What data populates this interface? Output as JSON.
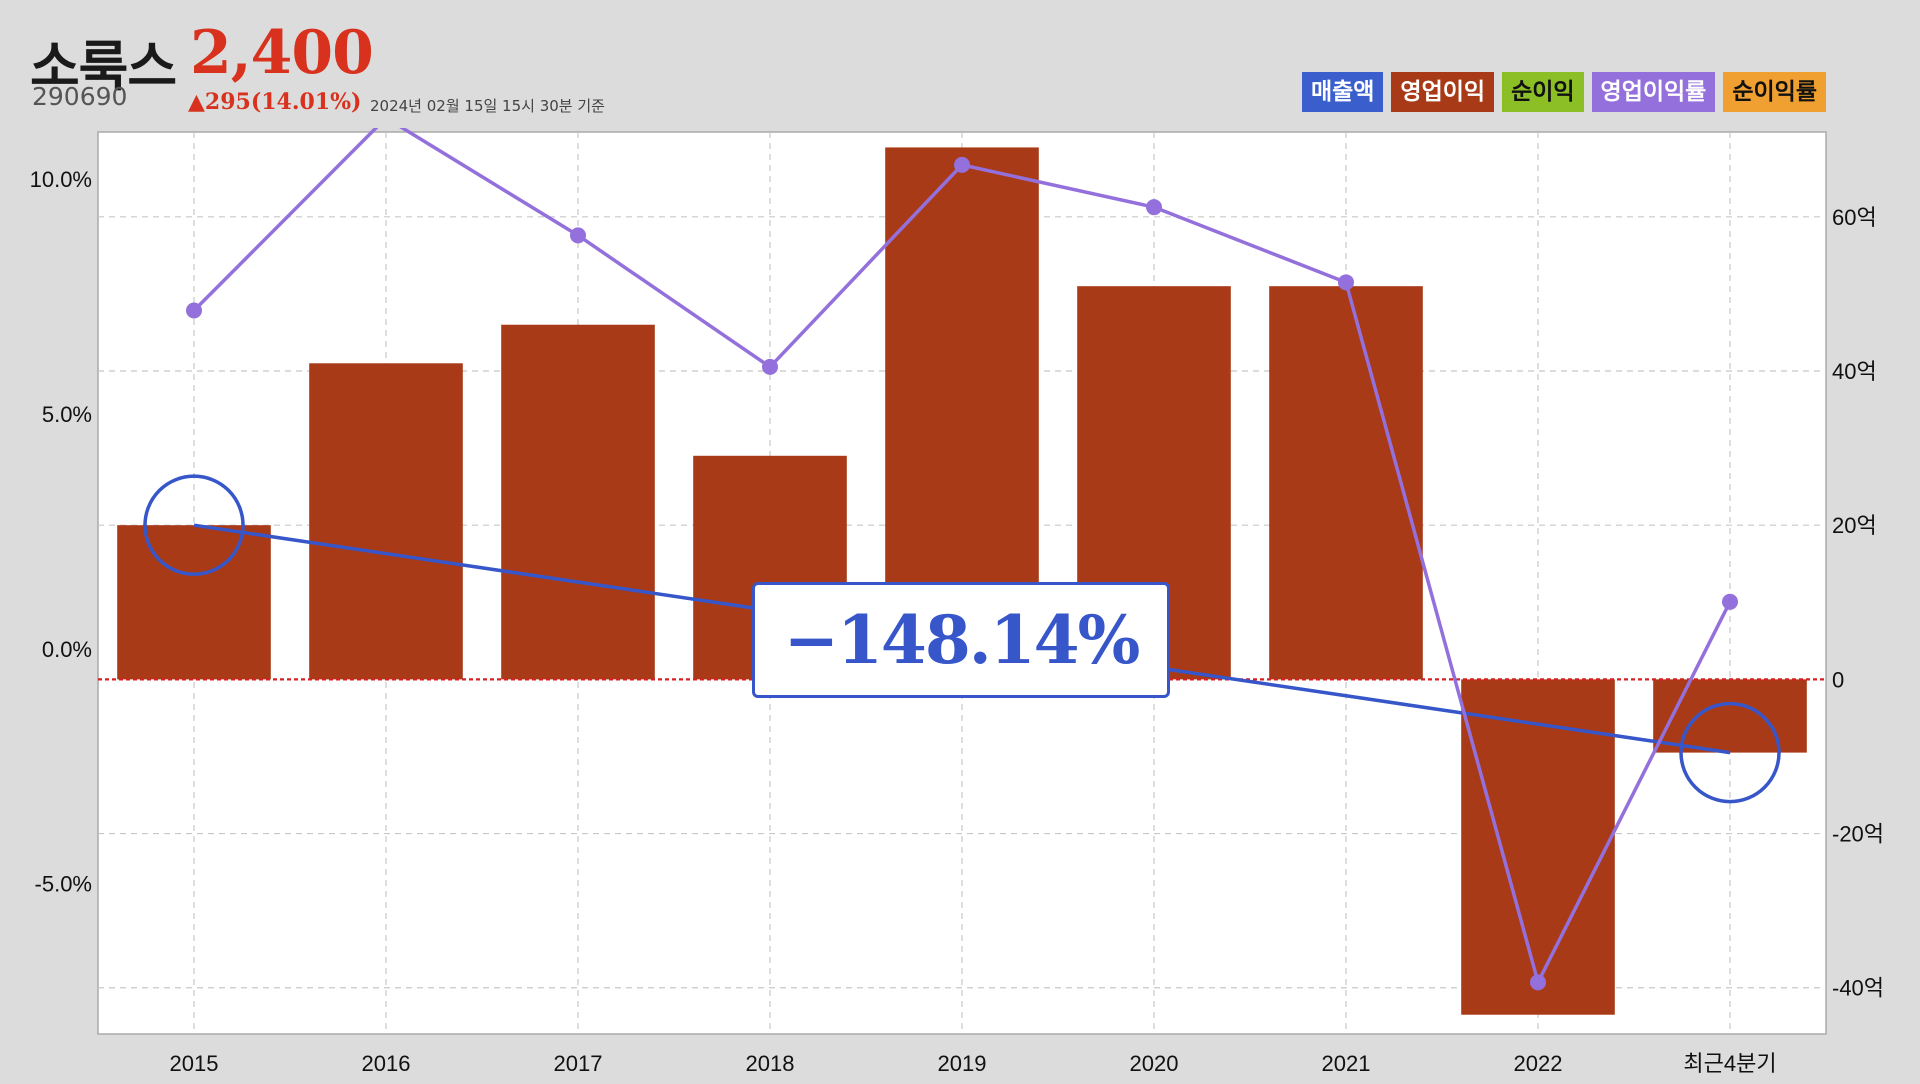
{
  "header": {
    "stock_name": "소룩스",
    "price": "2,400",
    "code": "290690",
    "change": "▲295(14.01%)",
    "timestamp": "2024년 02월 15일 15시 30분 기준"
  },
  "legend": [
    {
      "label": "매출액",
      "color": "#3a5fcd",
      "text_color": "light"
    },
    {
      "label": "영업이익",
      "color": "#a83a18",
      "text_color": "light"
    },
    {
      "label": "순이익",
      "color": "#8cbf26",
      "text_color": "dark"
    },
    {
      "label": "영업이익률",
      "color": "#9370db",
      "text_color": "light"
    },
    {
      "label": "순이익률",
      "color": "#f0a030",
      "text_color": "dark"
    }
  ],
  "callout": {
    "text": "−148.14%"
  },
  "chart_data": {
    "type": "bar",
    "categories": [
      "2015",
      "2016",
      "2017",
      "2018",
      "2019",
      "2020",
      "2021",
      "2022",
      "최근4분기"
    ],
    "series": [
      {
        "name": "영업이익",
        "type": "bar",
        "axis": "right",
        "color": "#a83a18",
        "values": [
          20,
          41,
          46,
          29,
          69,
          51,
          51,
          -43.5,
          -9.5
        ]
      },
      {
        "name": "영업이익률",
        "type": "line",
        "axis": "left",
        "color": "#9370db",
        "values": [
          7.2,
          11.3,
          8.8,
          6.0,
          10.3,
          9.4,
          7.8,
          -7.1,
          1.0
        ]
      },
      {
        "name": "trend",
        "type": "line",
        "axis": "right",
        "color": "#3656c9",
        "from": {
          "category": "2015",
          "value": 20
        },
        "to": {
          "category": "최근4분기",
          "value": -9.5
        }
      }
    ],
    "left_axis": {
      "ylim": [
        -8.2,
        11.0
      ],
      "ticks": [
        10.0,
        5.0,
        0.0,
        -5.0
      ],
      "tick_labels": [
        "10.0%",
        "5.0%",
        "0.0%",
        "-5.0%"
      ]
    },
    "right_axis": {
      "ylim": [
        -46,
        71
      ],
      "ticks": [
        60,
        40,
        20,
        0,
        -20,
        -40
      ],
      "tick_labels": [
        "60억",
        "40억",
        "20억",
        "0",
        "-20억",
        "-40억"
      ]
    },
    "highlight_circles": [
      "2015",
      "최근4분기"
    ],
    "zero_line_color": "#d62020",
    "grid": true
  }
}
